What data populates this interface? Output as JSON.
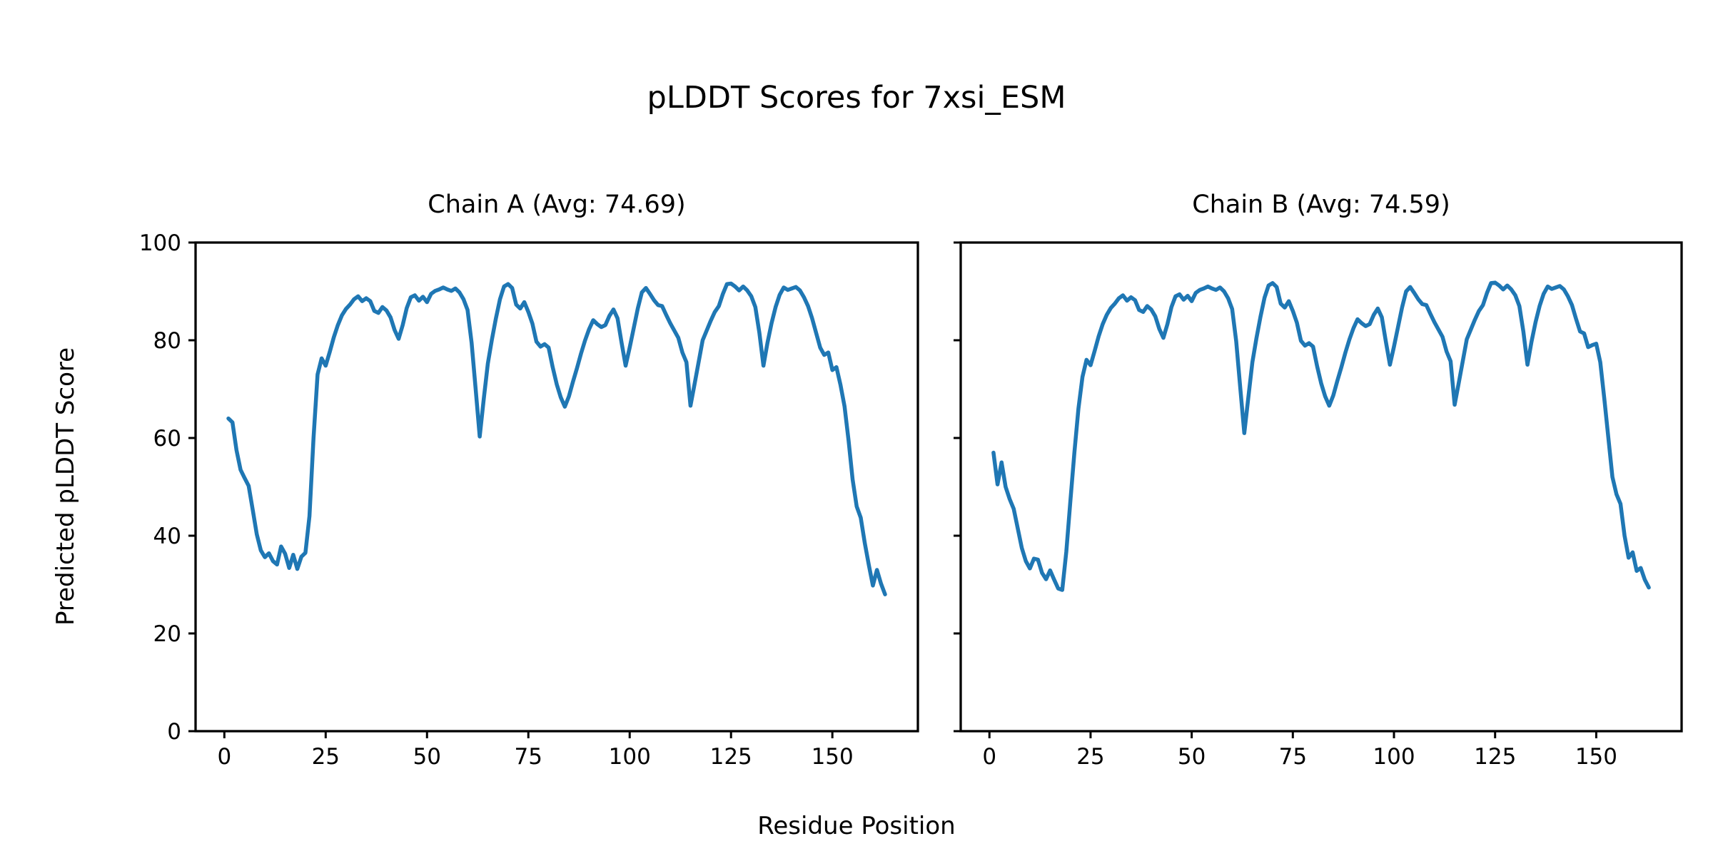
{
  "figure": {
    "title": "pLDDT Scores for 7xsi_ESM",
    "xlabel": "Residue Position",
    "ylabel": "Predicted pLDDT Score",
    "background_color": "#ffffff",
    "line_color": "#1f77b4",
    "spine_color": "#000000"
  },
  "chart_data": [
    {
      "type": "line",
      "title": "Chain A (Avg: 74.69)",
      "chain": "A",
      "average_plddt": 74.69,
      "x_start": 1,
      "xlim": [
        -7.1,
        171.1
      ],
      "ylim": [
        0,
        100
      ],
      "xticks": [
        0,
        25,
        50,
        75,
        100,
        125,
        150
      ],
      "yticks": [
        0,
        20,
        40,
        60,
        80,
        100
      ],
      "show_y_tick_labels": true,
      "grid": false,
      "legend": "none",
      "values": [
        64.0,
        63.2,
        57.5,
        53.5,
        51.8,
        50.2,
        45.3,
        40.3,
        37.0,
        35.6,
        36.4,
        34.8,
        34.1,
        37.8,
        36.3,
        33.4,
        36.1,
        33.2,
        35.7,
        36.5,
        44.0,
        60.0,
        73.0,
        76.3,
        74.8,
        77.6,
        80.6,
        83.1,
        85.1,
        86.4,
        87.3,
        88.4,
        89.0,
        88.0,
        88.6,
        88.0,
        86.0,
        85.6,
        86.8,
        86.1,
        84.7,
        82.1,
        80.3,
        83.1,
        86.6,
        88.8,
        89.2,
        88.1,
        88.9,
        87.8,
        89.5,
        90.1,
        90.4,
        90.8,
        90.4,
        90.1,
        90.6,
        89.8,
        88.4,
        86.2,
        79.5,
        70.0,
        60.3,
        68.0,
        75.2,
        80.1,
        84.5,
        88.4,
        91.0,
        91.5,
        90.7,
        87.3,
        86.5,
        87.8,
        85.8,
        83.4,
        79.7,
        78.7,
        79.2,
        78.5,
        74.5,
        71.0,
        68.3,
        66.4,
        68.5,
        71.5,
        74.3,
        77.3,
        80.0,
        82.3,
        84.1,
        83.3,
        82.7,
        83.1,
        85.0,
        86.3,
        84.5,
        79.5,
        74.8,
        78.5,
        82.5,
        86.5,
        89.8,
        90.7,
        89.5,
        88.2,
        87.2,
        87.0,
        85.2,
        83.5,
        82.0,
        80.5,
        77.5,
        75.5,
        66.6,
        71.0,
        75.5,
        80.0,
        82.0,
        84.0,
        85.8,
        87.0,
        89.5,
        91.5,
        91.6,
        91.0,
        90.2,
        91.0,
        90.2,
        89.0,
        86.8,
        81.5,
        74.8,
        79.5,
        83.5,
        86.8,
        89.3,
        90.8,
        90.3,
        90.6,
        90.9,
        90.2,
        88.8,
        87.0,
        84.5,
        81.5,
        78.5,
        77.0,
        77.5,
        73.9,
        74.5,
        70.9,
        66.5,
        59.5,
        51.5,
        46.0,
        43.7,
        38.5,
        34.0,
        29.8,
        33.0,
        30.2,
        28.0
      ]
    },
    {
      "type": "line",
      "title": "Chain B (Avg: 74.59)",
      "chain": "B",
      "average_plddt": 74.59,
      "x_start": 1,
      "xlim": [
        -7.1,
        171.1
      ],
      "ylim": [
        0,
        100
      ],
      "xticks": [
        0,
        25,
        50,
        75,
        100,
        125,
        150
      ],
      "yticks": [
        0,
        20,
        40,
        60,
        80,
        100
      ],
      "show_y_tick_labels": false,
      "grid": false,
      "legend": "none",
      "values": [
        57.0,
        50.5,
        55.0,
        50.0,
        47.5,
        45.5,
        41.5,
        37.5,
        34.8,
        33.3,
        35.3,
        35.1,
        32.4,
        31.1,
        32.9,
        31.0,
        29.2,
        28.9,
        36.7,
        47.0,
        57.0,
        66.0,
        72.5,
        76.0,
        74.9,
        77.8,
        80.8,
        83.3,
        85.2,
        86.6,
        87.5,
        88.6,
        89.2,
        88.1,
        88.8,
        88.2,
        86.2,
        85.8,
        87.0,
        86.3,
        84.9,
        82.3,
        80.5,
        83.3,
        86.8,
        89.0,
        89.4,
        88.3,
        89.1,
        88.0,
        89.7,
        90.3,
        90.6,
        91.0,
        90.6,
        90.3,
        90.8,
        90.0,
        88.6,
        86.4,
        79.8,
        70.3,
        61.0,
        68.3,
        75.5,
        80.4,
        84.8,
        88.7,
        91.2,
        91.7,
        90.9,
        87.5,
        86.7,
        88.0,
        86.0,
        83.6,
        79.9,
        78.9,
        79.4,
        78.7,
        74.7,
        71.2,
        68.5,
        66.6,
        68.7,
        71.7,
        74.5,
        77.5,
        80.2,
        82.5,
        84.3,
        83.5,
        82.9,
        83.3,
        85.2,
        86.5,
        84.7,
        79.7,
        75.0,
        78.7,
        82.7,
        86.7,
        90.0,
        90.9,
        89.7,
        88.4,
        87.4,
        87.2,
        85.4,
        83.7,
        82.2,
        80.7,
        77.7,
        75.7,
        66.8,
        71.2,
        75.7,
        80.2,
        82.2,
        84.2,
        86.0,
        87.2,
        89.7,
        91.7,
        91.8,
        91.2,
        90.4,
        91.2,
        90.4,
        89.2,
        87.0,
        81.7,
        75.0,
        79.7,
        83.7,
        87.0,
        89.5,
        91.0,
        90.5,
        90.8,
        91.1,
        90.4,
        89.0,
        87.2,
        84.4,
        81.8,
        81.4,
        78.6,
        79.0,
        79.3,
        75.5,
        68.0,
        60.0,
        52.0,
        48.5,
        46.5,
        40.0,
        35.5,
        36.6,
        32.8,
        33.4,
        31.0,
        29.4
      ]
    }
  ]
}
